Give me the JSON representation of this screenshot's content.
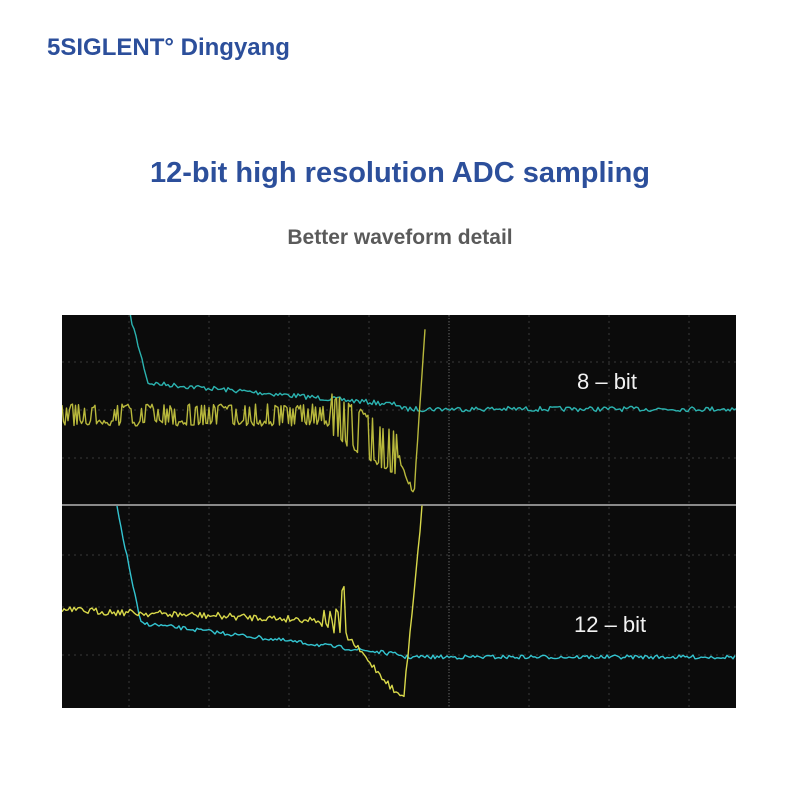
{
  "header": {
    "brand": "5SIGLENT° Dingyang"
  },
  "title": "12-bit high resolution ADC sampling",
  "subtitle": "Better waveform detail",
  "scope": {
    "labels": [
      "8 – bit",
      "12 – bit"
    ]
  }
}
